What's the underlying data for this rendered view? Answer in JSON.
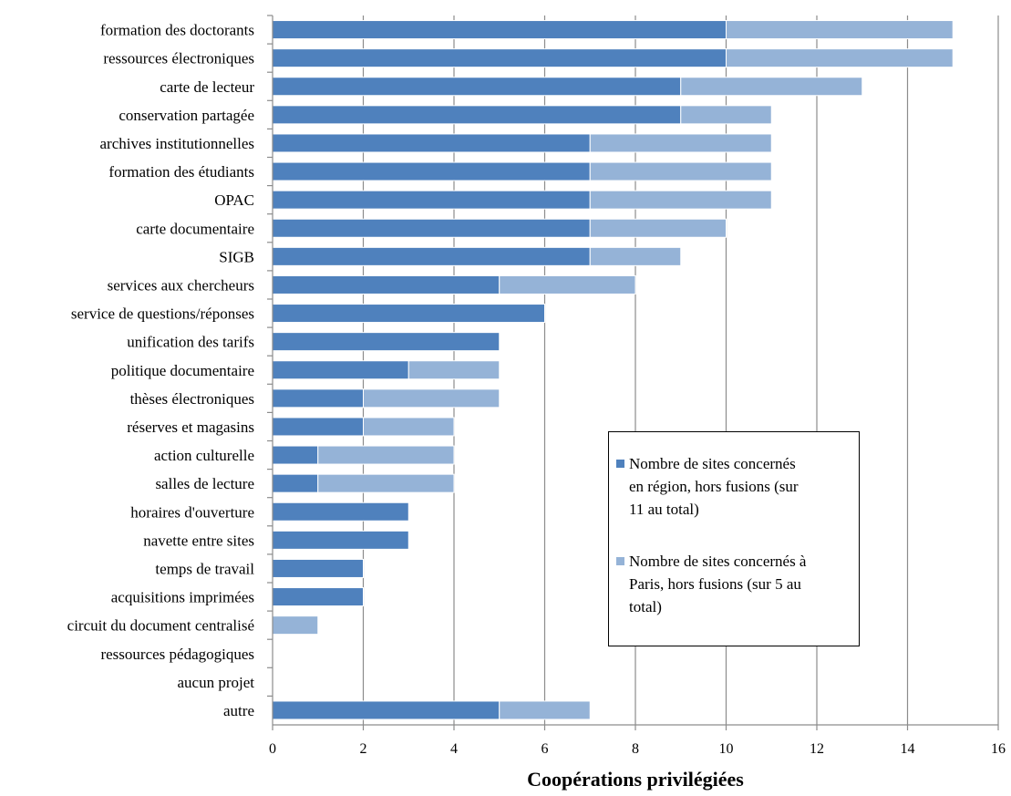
{
  "chart_data": {
    "type": "bar",
    "orientation": "horizontal",
    "stacked": true,
    "categories": [
      "formation des doctorants",
      "ressources électroniques",
      "carte de lecteur",
      "conservation partagée",
      "archives institutionnelles",
      "formation des étudiants",
      "OPAC",
      "carte documentaire",
      "SIGB",
      "services aux chercheurs",
      "service de questions/réponses",
      "unification des tarifs",
      "politique documentaire",
      "thèses électroniques",
      "réserves et magasins",
      "action culturelle",
      "salles de lecture",
      "horaires d'ouverture",
      "navette entre sites",
      "temps de travail",
      "acquisitions imprimées",
      "circuit du document centralisé",
      "ressources pédagogiques",
      "aucun projet",
      "autre"
    ],
    "series": [
      {
        "name": "Nombre de sites concernés en région, hors fusions (sur 11 au total)",
        "color": "#4f81bd",
        "values": [
          10,
          10,
          9,
          9,
          7,
          7,
          7,
          7,
          7,
          5,
          6,
          5,
          3,
          2,
          2,
          1,
          1,
          3,
          3,
          2,
          2,
          0,
          0,
          0,
          5
        ]
      },
      {
        "name": "Nombre de sites concernés à Paris, hors fusions (sur 5 au total)",
        "color": "#95b3d7",
        "values": [
          5,
          5,
          4,
          2,
          4,
          4,
          4,
          3,
          2,
          3,
          0,
          0,
          2,
          3,
          2,
          3,
          3,
          0,
          0,
          0,
          0,
          1,
          0,
          0,
          2
        ]
      }
    ],
    "xlabel": "Coopérations privilégiées",
    "xlim": [
      0,
      16
    ],
    "xticks": [
      "0",
      "2",
      "4",
      "6",
      "8",
      "10",
      "12",
      "14",
      "16"
    ],
    "grid": "vertical",
    "legend_position": "lower-right inside plot"
  },
  "legend": {
    "items": [
      {
        "label_lines": [
          "Nombre de sites concernés",
          "en région, hors fusions (sur",
          "11 au total)"
        ],
        "color": "#4f81bd"
      },
      {
        "label_lines": [
          "Nombre de sites concernés à",
          "Paris, hors fusions (sur 5 au",
          "total)"
        ],
        "color": "#95b3d7"
      }
    ]
  }
}
